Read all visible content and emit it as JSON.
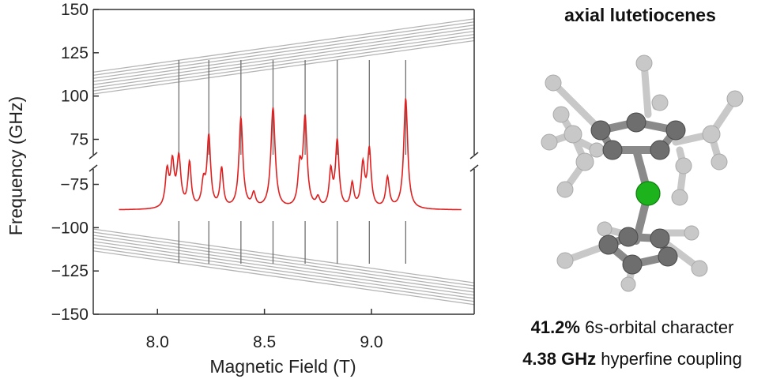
{
  "chart_data": {
    "type": "line",
    "xlabel": "Magnetic Field (T)",
    "ylabel": "Frequency (GHz)",
    "xlim": [
      7.7,
      9.48
    ],
    "x_ticks": [
      8.0,
      8.5,
      9.0
    ],
    "x_tick_labels": [
      "8.0",
      "8.5",
      "9.0"
    ],
    "upper_segment": {
      "ylim": [
        62,
        150
      ],
      "ticks": [
        75,
        100,
        125,
        150
      ],
      "tick_labels": [
        "75",
        "100",
        "125",
        "150"
      ]
    },
    "lower_segment": {
      "ylim": [
        -150,
        -62
      ],
      "ticks": [
        -75,
        -100,
        -125,
        -150
      ],
      "tick_labels": [
        "−75",
        "−100",
        "−125",
        "−150"
      ]
    },
    "axis_break": true,
    "grid": false,
    "energy_levels_upper": [
      {
        "y0": 101.2,
        "y1": 132.0
      },
      {
        "y0": 103.0,
        "y1": 133.8
      },
      {
        "y0": 104.8,
        "y1": 135.6
      },
      {
        "y0": 106.6,
        "y1": 137.4
      },
      {
        "y0": 108.4,
        "y1": 139.2
      },
      {
        "y0": 110.2,
        "y1": 141.0
      },
      {
        "y0": 112.0,
        "y1": 142.8
      },
      {
        "y0": 113.8,
        "y1": 144.6
      }
    ],
    "energy_levels_lower": [
      {
        "y0": -100.8,
        "y1": -131.8
      },
      {
        "y0": -102.6,
        "y1": -133.6
      },
      {
        "y0": -104.4,
        "y1": -135.4
      },
      {
        "y0": -106.2,
        "y1": -137.2
      },
      {
        "y0": -108.0,
        "y1": -139.0
      },
      {
        "y0": -109.8,
        "y1": -140.8
      },
      {
        "y0": -111.6,
        "y1": -142.6
      },
      {
        "y0": -113.4,
        "y1": -144.4
      }
    ],
    "transition_fields": [
      8.1,
      8.24,
      8.39,
      8.54,
      8.69,
      8.84,
      8.99,
      9.16
    ],
    "spectrum": {
      "color": "#e02020",
      "x_range": [
        7.82,
        9.42
      ],
      "peaks": [
        {
          "x": 8.045,
          "h": 0.42,
          "w": 0.01
        },
        {
          "x": 8.07,
          "h": 0.5,
          "w": 0.01
        },
        {
          "x": 8.1,
          "h": 0.58,
          "w": 0.011
        },
        {
          "x": 8.15,
          "h": 0.52,
          "w": 0.009
        },
        {
          "x": 8.215,
          "h": 0.28,
          "w": 0.01
        },
        {
          "x": 8.24,
          "h": 0.83,
          "w": 0.01
        },
        {
          "x": 8.3,
          "h": 0.46,
          "w": 0.009
        },
        {
          "x": 8.39,
          "h": 1.06,
          "w": 0.011
        },
        {
          "x": 8.45,
          "h": 0.16,
          "w": 0.01
        },
        {
          "x": 8.54,
          "h": 1.18,
          "w": 0.012
        },
        {
          "x": 8.665,
          "h": 0.44,
          "w": 0.01
        },
        {
          "x": 8.69,
          "h": 1.04,
          "w": 0.011
        },
        {
          "x": 8.75,
          "h": 0.11,
          "w": 0.01
        },
        {
          "x": 8.81,
          "h": 0.42,
          "w": 0.009
        },
        {
          "x": 8.84,
          "h": 0.78,
          "w": 0.01
        },
        {
          "x": 8.91,
          "h": 0.28,
          "w": 0.009
        },
        {
          "x": 8.96,
          "h": 0.5,
          "w": 0.01
        },
        {
          "x": 8.99,
          "h": 0.68,
          "w": 0.01
        },
        {
          "x": 9.075,
          "h": 0.36,
          "w": 0.01
        },
        {
          "x": 9.16,
          "h": 1.3,
          "w": 0.011
        }
      ]
    }
  },
  "molecule": {
    "title": "axial lutetiocenes",
    "colors": {
      "lutetium": "#1db31d",
      "carbon": "#6e6e6e",
      "substituent": "#c8c8c8",
      "bond": "#8a8a8a"
    }
  },
  "captions": {
    "line1_value": "41.2%",
    "line1_text": " 6s-orbital character",
    "line2_value": "4.38 GHz",
    "line2_text": " hyperfine coupling"
  }
}
